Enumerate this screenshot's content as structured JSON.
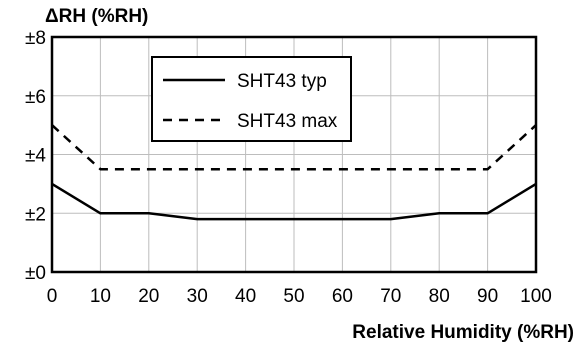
{
  "chart_data": {
    "type": "line",
    "title": "",
    "ylabel": "ΔRH (%RH)",
    "xlabel": "Relative Humidity (%RH)",
    "xlim": [
      0,
      100
    ],
    "ylim": [
      0,
      8
    ],
    "x_ticks": [
      0,
      10,
      20,
      30,
      40,
      50,
      60,
      70,
      80,
      90,
      100
    ],
    "x_tick_labels": [
      "0",
      "10",
      "20",
      "30",
      "40",
      "50",
      "60",
      "70",
      "80",
      "90",
      "100"
    ],
    "y_ticks": [
      0,
      2,
      4,
      6,
      8
    ],
    "y_tick_labels": [
      "±0",
      "±2",
      "±4",
      "±6",
      "±8"
    ],
    "grid": true,
    "legend_position": "top-center",
    "series": [
      {
        "name": "SHT43 typ",
        "line_style": "solid",
        "color": "#000000",
        "points": [
          [
            0,
            3
          ],
          [
            10,
            2
          ],
          [
            20,
            2
          ],
          [
            30,
            1.8
          ],
          [
            40,
            1.8
          ],
          [
            50,
            1.8
          ],
          [
            60,
            1.8
          ],
          [
            70,
            1.8
          ],
          [
            80,
            2
          ],
          [
            90,
            2
          ],
          [
            100,
            3
          ]
        ]
      },
      {
        "name": "SHT43 max",
        "line_style": "dashed",
        "color": "#000000",
        "points": [
          [
            0,
            5
          ],
          [
            10,
            3.5
          ],
          [
            20,
            3.5
          ],
          [
            30,
            3.5
          ],
          [
            40,
            3.5
          ],
          [
            50,
            3.5
          ],
          [
            60,
            3.5
          ],
          [
            70,
            3.5
          ],
          [
            80,
            3.5
          ],
          [
            90,
            3.5
          ],
          [
            100,
            5
          ]
        ]
      }
    ]
  }
}
